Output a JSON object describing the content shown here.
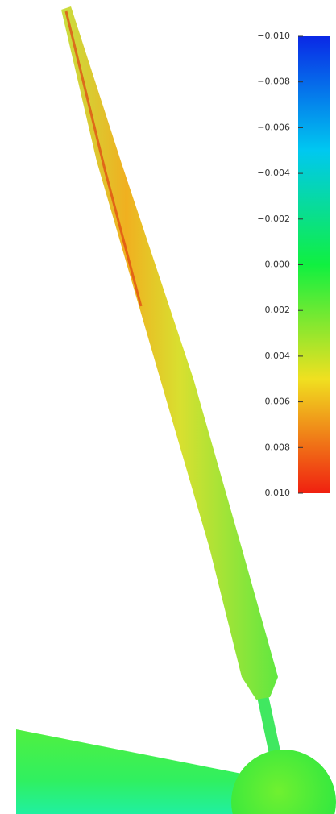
{
  "colorbar": {
    "range": [
      -0.01,
      0.01
    ],
    "ticks": [
      {
        "value": -0.01,
        "label": "−0.010"
      },
      {
        "value": -0.008,
        "label": "−0.008"
      },
      {
        "value": -0.006,
        "label": "−0.006"
      },
      {
        "value": -0.004,
        "label": "−0.004"
      },
      {
        "value": -0.002,
        "label": "−0.002"
      },
      {
        "value": 0,
        "label": "0.000"
      },
      {
        "value": 0.002,
        "label": "0.002"
      },
      {
        "value": 0.004,
        "label": "0.004"
      },
      {
        "value": 0.006,
        "label": "0.006"
      },
      {
        "value": 0.008,
        "label": "0.008"
      },
      {
        "value": 0.01,
        "label": "0.010"
      }
    ]
  }
}
